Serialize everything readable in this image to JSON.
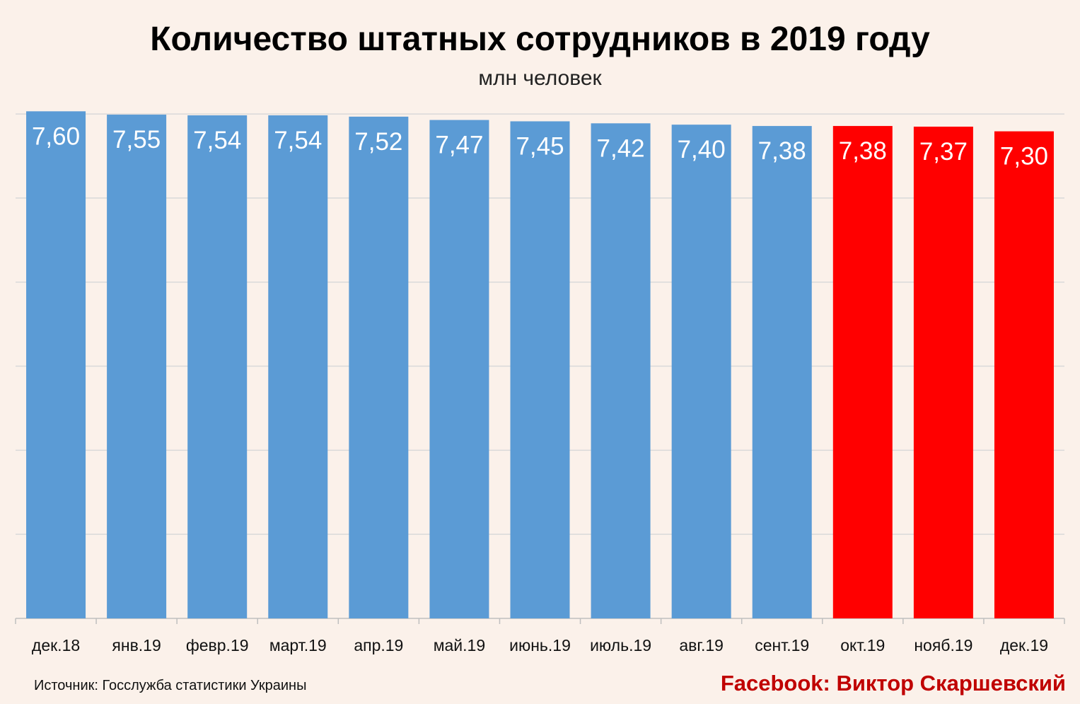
{
  "chart_data": {
    "type": "bar",
    "title": "Количество штатных сотрудников в 2019 году",
    "subtitle": "млн человек",
    "categories": [
      "дек.18",
      "янв.19",
      "февр.19",
      "март.19",
      "апр.19",
      "май.19",
      "июнь.19",
      "июль.19",
      "авг.19",
      "сент.19",
      "окт.19",
      "нояб.19",
      "дек.19"
    ],
    "values": [
      7.6,
      7.55,
      7.54,
      7.54,
      7.52,
      7.47,
      7.45,
      7.42,
      7.4,
      7.38,
      7.38,
      7.37,
      7.3
    ],
    "data_labels": [
      "7,60",
      "7,55",
      "7,54",
      "7,54",
      "7,52",
      "7,47",
      "7,45",
      "7,42",
      "7,40",
      "7,38",
      "7,38",
      "7,37",
      "7,30"
    ],
    "highlight": [
      false,
      false,
      false,
      false,
      false,
      false,
      false,
      false,
      false,
      false,
      true,
      true,
      true
    ],
    "colors": {
      "bar": "#5B9BD5",
      "highlight": "#FF0000",
      "grid": "#D9D9D9",
      "background": "#FBF1EA"
    },
    "grid": true,
    "legend": "none"
  },
  "footer": {
    "source": "Источник: Госслужба статистики Украины",
    "credit": "Facebook: Виктор Скаршевский"
  }
}
